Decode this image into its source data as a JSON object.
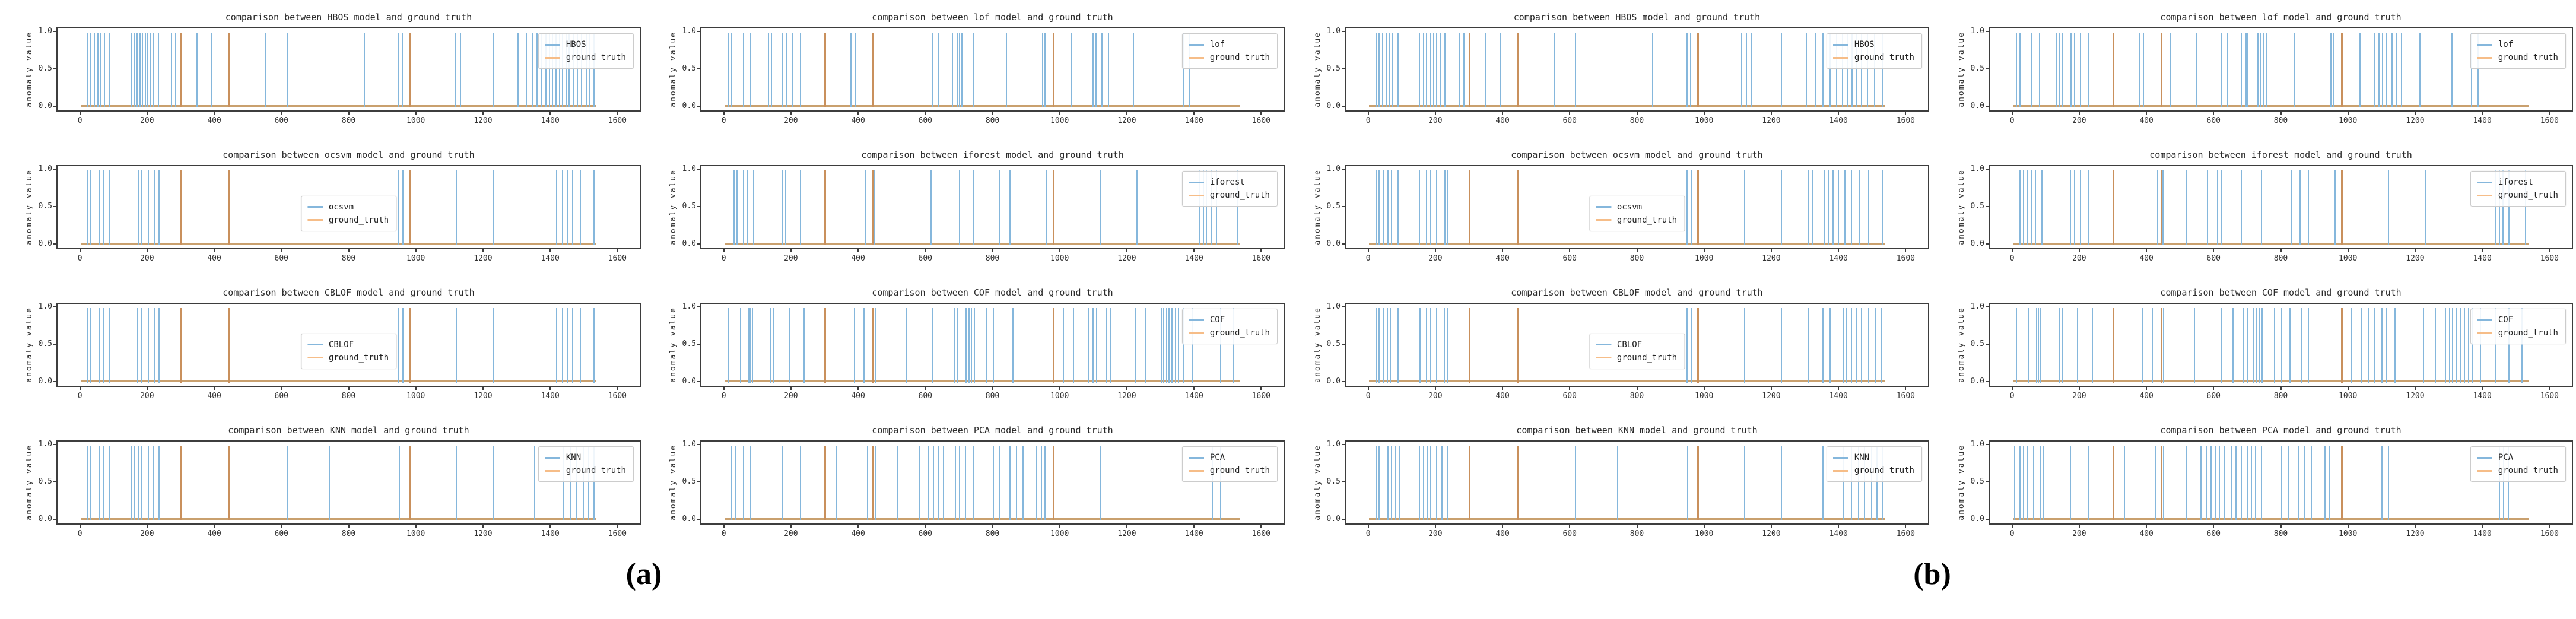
{
  "panels": [
    {
      "label": "(a)"
    },
    {
      "label": "(b)"
    }
  ],
  "chart_data": {
    "type": "line",
    "ylabel": "anomaly value",
    "yticks": [
      "1.0",
      "0.5",
      "0.0"
    ],
    "xticks": [
      0,
      200,
      400,
      600,
      800,
      1000,
      1200,
      1400,
      1600
    ],
    "xlim": [
      -70,
      1670
    ],
    "ylim": [
      0,
      1.0
    ],
    "grid": false,
    "legend_truth_label": "ground_truth",
    "colors": {
      "model_line": "#85B7DC",
      "truth_spike": "#C9905C",
      "truth_legend_swatch": "#F6BD88",
      "baseline": "#C9A06E",
      "frame": "#3d3d3d"
    },
    "truth_spikes": [
      298,
      440,
      980
    ],
    "baseline_span": [
      0,
      1540
    ],
    "plots": [
      {
        "panel": "a",
        "row": 0,
        "col": 0,
        "model": "HBOS",
        "title": "comparison between HBOS model and ground truth",
        "legend_pos": "upper-right",
        "spikes": [
          18,
          28,
          38,
          48,
          58,
          68,
          85,
          148,
          158,
          166,
          174,
          182,
          190,
          198,
          206,
          215,
          230,
          268,
          282,
          345,
          390,
          550,
          615,
          845,
          948,
          958,
          1118,
          1132,
          1230,
          1305,
          1330,
          1347,
          1362,
          1375,
          1388,
          1398,
          1408,
          1418,
          1428,
          1438,
          1448,
          1458,
          1470,
          1482,
          1495,
          1508,
          1520,
          1532
        ]
      },
      {
        "panel": "a",
        "row": 0,
        "col": 1,
        "model": "lof",
        "title": "comparison between lof model and ground truth",
        "legend_pos": "upper-right",
        "spikes": [
          8,
          18,
          55,
          75,
          128,
          138,
          172,
          182,
          200,
          225,
          375,
          388,
          442,
          620,
          638,
          678,
          692,
          700,
          706,
          740,
          840,
          948,
          956,
          1035,
          1098,
          1108,
          1125,
          1145,
          1220,
          1368,
          1388
        ]
      },
      {
        "panel": "a",
        "row": 1,
        "col": 0,
        "model": "ocsvm",
        "title": "comparison between ocsvm model and ground truth",
        "legend_pos": "center",
        "spikes": [
          18,
          28,
          55,
          65,
          85,
          170,
          180,
          200,
          220,
          232,
          948,
          960,
          1120,
          1230,
          1420,
          1438,
          1452,
          1468,
          1490,
          1532
        ]
      },
      {
        "panel": "a",
        "row": 1,
        "col": 1,
        "model": "iforest",
        "title": "comparison between iforest model and ground truth",
        "legend_pos": "upper-right",
        "spikes": [
          25,
          35,
          55,
          65,
          85,
          170,
          180,
          225,
          420,
          447,
          615,
          700,
          740,
          820,
          850,
          960,
          1120,
          1230,
          1418,
          1428,
          1438,
          1452,
          1468,
          1530
        ]
      },
      {
        "panel": "a",
        "row": 2,
        "col": 0,
        "model": "CBLOF",
        "title": "comparison between CBLOF model and ground truth",
        "legend_pos": "center",
        "spikes": [
          18,
          28,
          55,
          65,
          85,
          168,
          180,
          200,
          220,
          232,
          948,
          960,
          1120,
          1230,
          1420,
          1438,
          1452,
          1468,
          1490,
          1532
        ]
      },
      {
        "panel": "a",
        "row": 2,
        "col": 1,
        "model": "COF",
        "title": "comparison between COF model and ground truth",
        "legend_pos": "upper-right",
        "spikes": [
          8,
          45,
          68,
          74,
          80,
          135,
          142,
          190,
          235,
          385,
          415,
          442,
          448,
          540,
          620,
          685,
          695,
          720,
          728,
          736,
          744,
          780,
          800,
          860,
          1010,
          1040,
          1085,
          1098,
          1110,
          1140,
          1150,
          1225,
          1255,
          1302,
          1310,
          1318,
          1326,
          1335,
          1345,
          1355,
          1370,
          1395,
          1480,
          1520
        ]
      },
      {
        "panel": "a",
        "row": 3,
        "col": 0,
        "model": "KNN",
        "title": "comparison between KNN model and ground truth",
        "legend_pos": "upper-right",
        "spikes": [
          18,
          28,
          55,
          65,
          85,
          148,
          158,
          170,
          180,
          200,
          215,
          232,
          615,
          740,
          950,
          1120,
          1230,
          1355,
          1440,
          1460,
          1478,
          1500,
          1515,
          1532
        ]
      },
      {
        "panel": "a",
        "row": 3,
        "col": 1,
        "model": "PCA",
        "title": "comparison between PCA model and ground truth",
        "legend_pos": "upper-right",
        "spikes": [
          18,
          30,
          55,
          75,
          170,
          225,
          330,
          425,
          448,
          515,
          580,
          608,
          622,
          638,
          652,
          688,
          700,
          718,
          740,
          800,
          820,
          850,
          870,
          890,
          930,
          945,
          955,
          1120,
          1455,
          1480
        ]
      },
      {
        "panel": "b",
        "row": 0,
        "col": 0,
        "model": "HBOS",
        "title": "comparison between HBOS model and ground truth",
        "legend_pos": "upper-right",
        "spikes": [
          18,
          28,
          38,
          48,
          58,
          68,
          85,
          148,
          160,
          170,
          180,
          190,
          200,
          210,
          225,
          268,
          282,
          345,
          390,
          550,
          615,
          845,
          948,
          958,
          1112,
          1125,
          1140,
          1230,
          1305,
          1332,
          1355,
          1375,
          1395,
          1412,
          1428,
          1442,
          1456,
          1470,
          1488,
          1508,
          1532
        ]
      },
      {
        "panel": "b",
        "row": 0,
        "col": 1,
        "model": "lof",
        "title": "comparison between lof model and ground truth",
        "legend_pos": "upper-right",
        "spikes": [
          8,
          18,
          55,
          78,
          128,
          136,
          144,
          172,
          182,
          200,
          225,
          375,
          388,
          442,
          470,
          545,
          620,
          640,
          680,
          694,
          700,
          730,
          738,
          746,
          754,
          840,
          948,
          956,
          1035,
          1080,
          1092,
          1102,
          1115,
          1130,
          1145,
          1160,
          1215,
          1310,
          1368,
          1388
        ]
      },
      {
        "panel": "b",
        "row": 1,
        "col": 0,
        "model": "ocsvm",
        "title": "comparison between ocsvm model and ground truth",
        "legend_pos": "center",
        "spikes": [
          18,
          28,
          40,
          55,
          65,
          85,
          148,
          170,
          182,
          200,
          225,
          232,
          948,
          960,
          1120,
          1230,
          1310,
          1325,
          1360,
          1372,
          1385,
          1400,
          1420,
          1440,
          1462,
          1490,
          1532
        ]
      },
      {
        "panel": "b",
        "row": 1,
        "col": 1,
        "model": "iforest",
        "title": "comparison between iforest model and ground truth",
        "legend_pos": "upper-right",
        "spikes": [
          18,
          30,
          40,
          55,
          65,
          85,
          170,
          182,
          200,
          225,
          430,
          447,
          515,
          580,
          610,
          622,
          680,
          740,
          830,
          855,
          880,
          960,
          1120,
          1230,
          1440,
          1452,
          1462,
          1480,
          1530
        ]
      },
      {
        "panel": "b",
        "row": 2,
        "col": 0,
        "model": "CBLOF",
        "title": "comparison between CBLOF model and ground truth",
        "legend_pos": "center",
        "spikes": [
          18,
          28,
          40,
          52,
          62,
          85,
          150,
          170,
          182,
          200,
          222,
          232,
          948,
          960,
          1120,
          1230,
          1310,
          1355,
          1375,
          1415,
          1426,
          1440,
          1455,
          1470,
          1490,
          1510,
          1530
        ]
      },
      {
        "panel": "b",
        "row": 2,
        "col": 1,
        "model": "COF",
        "title": "comparison between COF model and ground truth",
        "legend_pos": "upper-right",
        "spikes": [
          8,
          45,
          68,
          74,
          80,
          138,
          145,
          190,
          235,
          385,
          415,
          442,
          448,
          540,
          620,
          655,
          685,
          700,
          718,
          726,
          734,
          742,
          780,
          800,
          825,
          860,
          880,
          1010,
          1040,
          1060,
          1080,
          1100,
          1115,
          1140,
          1225,
          1260,
          1290,
          1302,
          1312,
          1322,
          1335,
          1348,
          1360,
          1372,
          1395,
          1440,
          1480,
          1520
        ]
      },
      {
        "panel": "b",
        "row": 3,
        "col": 0,
        "model": "KNN",
        "title": "comparison between KNN model and ground truth",
        "legend_pos": "upper-right",
        "spikes": [
          18,
          28,
          55,
          65,
          78,
          88,
          148,
          160,
          172,
          182,
          200,
          215,
          232,
          615,
          740,
          950,
          1120,
          1230,
          1355,
          1415,
          1440,
          1460,
          1478,
          1500,
          1515,
          1532
        ]
      },
      {
        "panel": "b",
        "row": 3,
        "col": 1,
        "model": "PCA",
        "title": "comparison between PCA model and ground truth",
        "legend_pos": "upper-right",
        "spikes": [
          2,
          18,
          30,
          42,
          60,
          80,
          90,
          170,
          225,
          330,
          425,
          448,
          515,
          560,
          575,
          590,
          602,
          615,
          630,
          650,
          665,
          680,
          700,
          710,
          722,
          740,
          800,
          822,
          850,
          870,
          890,
          930,
          945,
          1100,
          1120,
          1452,
          1464,
          1478
        ]
      }
    ]
  }
}
